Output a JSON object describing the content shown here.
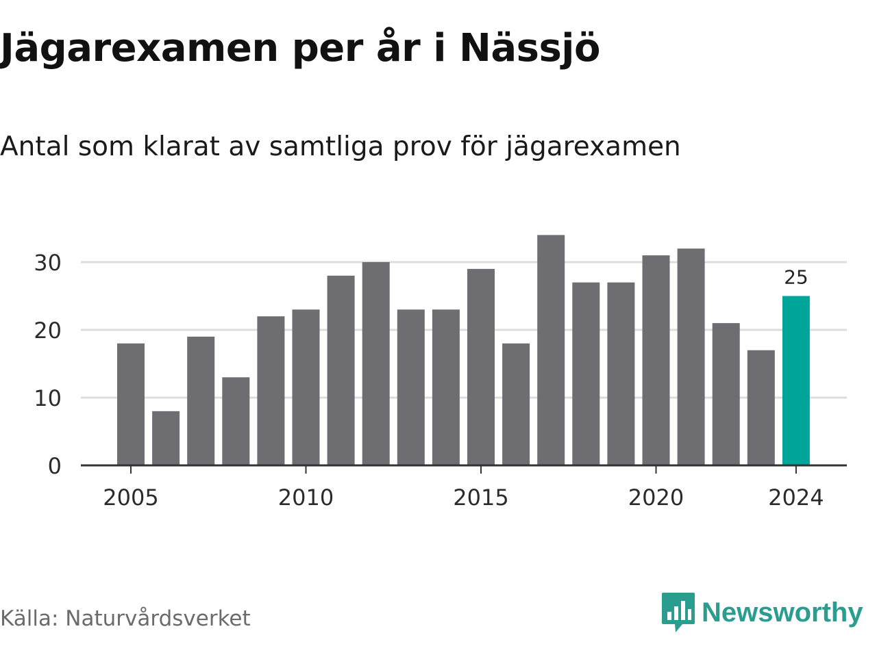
{
  "header": {
    "title": "Jägarexamen per år i Nässjö",
    "subtitle": "Antal som klarat av samtliga prov för jägarexamen"
  },
  "footer": {
    "source": "Källa: Naturvårdsverket",
    "brand": "Newsworthy"
  },
  "colors": {
    "bar": "#6e6d72",
    "highlight": "#00a59a",
    "grid": "#dddddd",
    "axis": "#333333",
    "brand": "#2a9d8f"
  },
  "icons": {
    "logo": "newsworthy-logo-icon"
  },
  "chart_data": {
    "type": "bar",
    "categories": [
      2005,
      2006,
      2007,
      2008,
      2009,
      2010,
      2011,
      2012,
      2013,
      2014,
      2015,
      2016,
      2017,
      2018,
      2019,
      2020,
      2021,
      2022,
      2023,
      2024
    ],
    "values": [
      18,
      8,
      19,
      13,
      22,
      23,
      28,
      30,
      23,
      23,
      29,
      18,
      34,
      27,
      27,
      31,
      32,
      21,
      17,
      25
    ],
    "x_tick_labels": [
      "2005",
      "2010",
      "2015",
      "2020",
      "2024"
    ],
    "y_ticks": [
      0,
      10,
      20,
      30
    ],
    "ylim": [
      0,
      35
    ],
    "grid": true,
    "highlight_category": 2024,
    "data_labels": [
      {
        "category": 2024,
        "text": "25"
      }
    ],
    "xlabel": "",
    "ylabel": ""
  }
}
